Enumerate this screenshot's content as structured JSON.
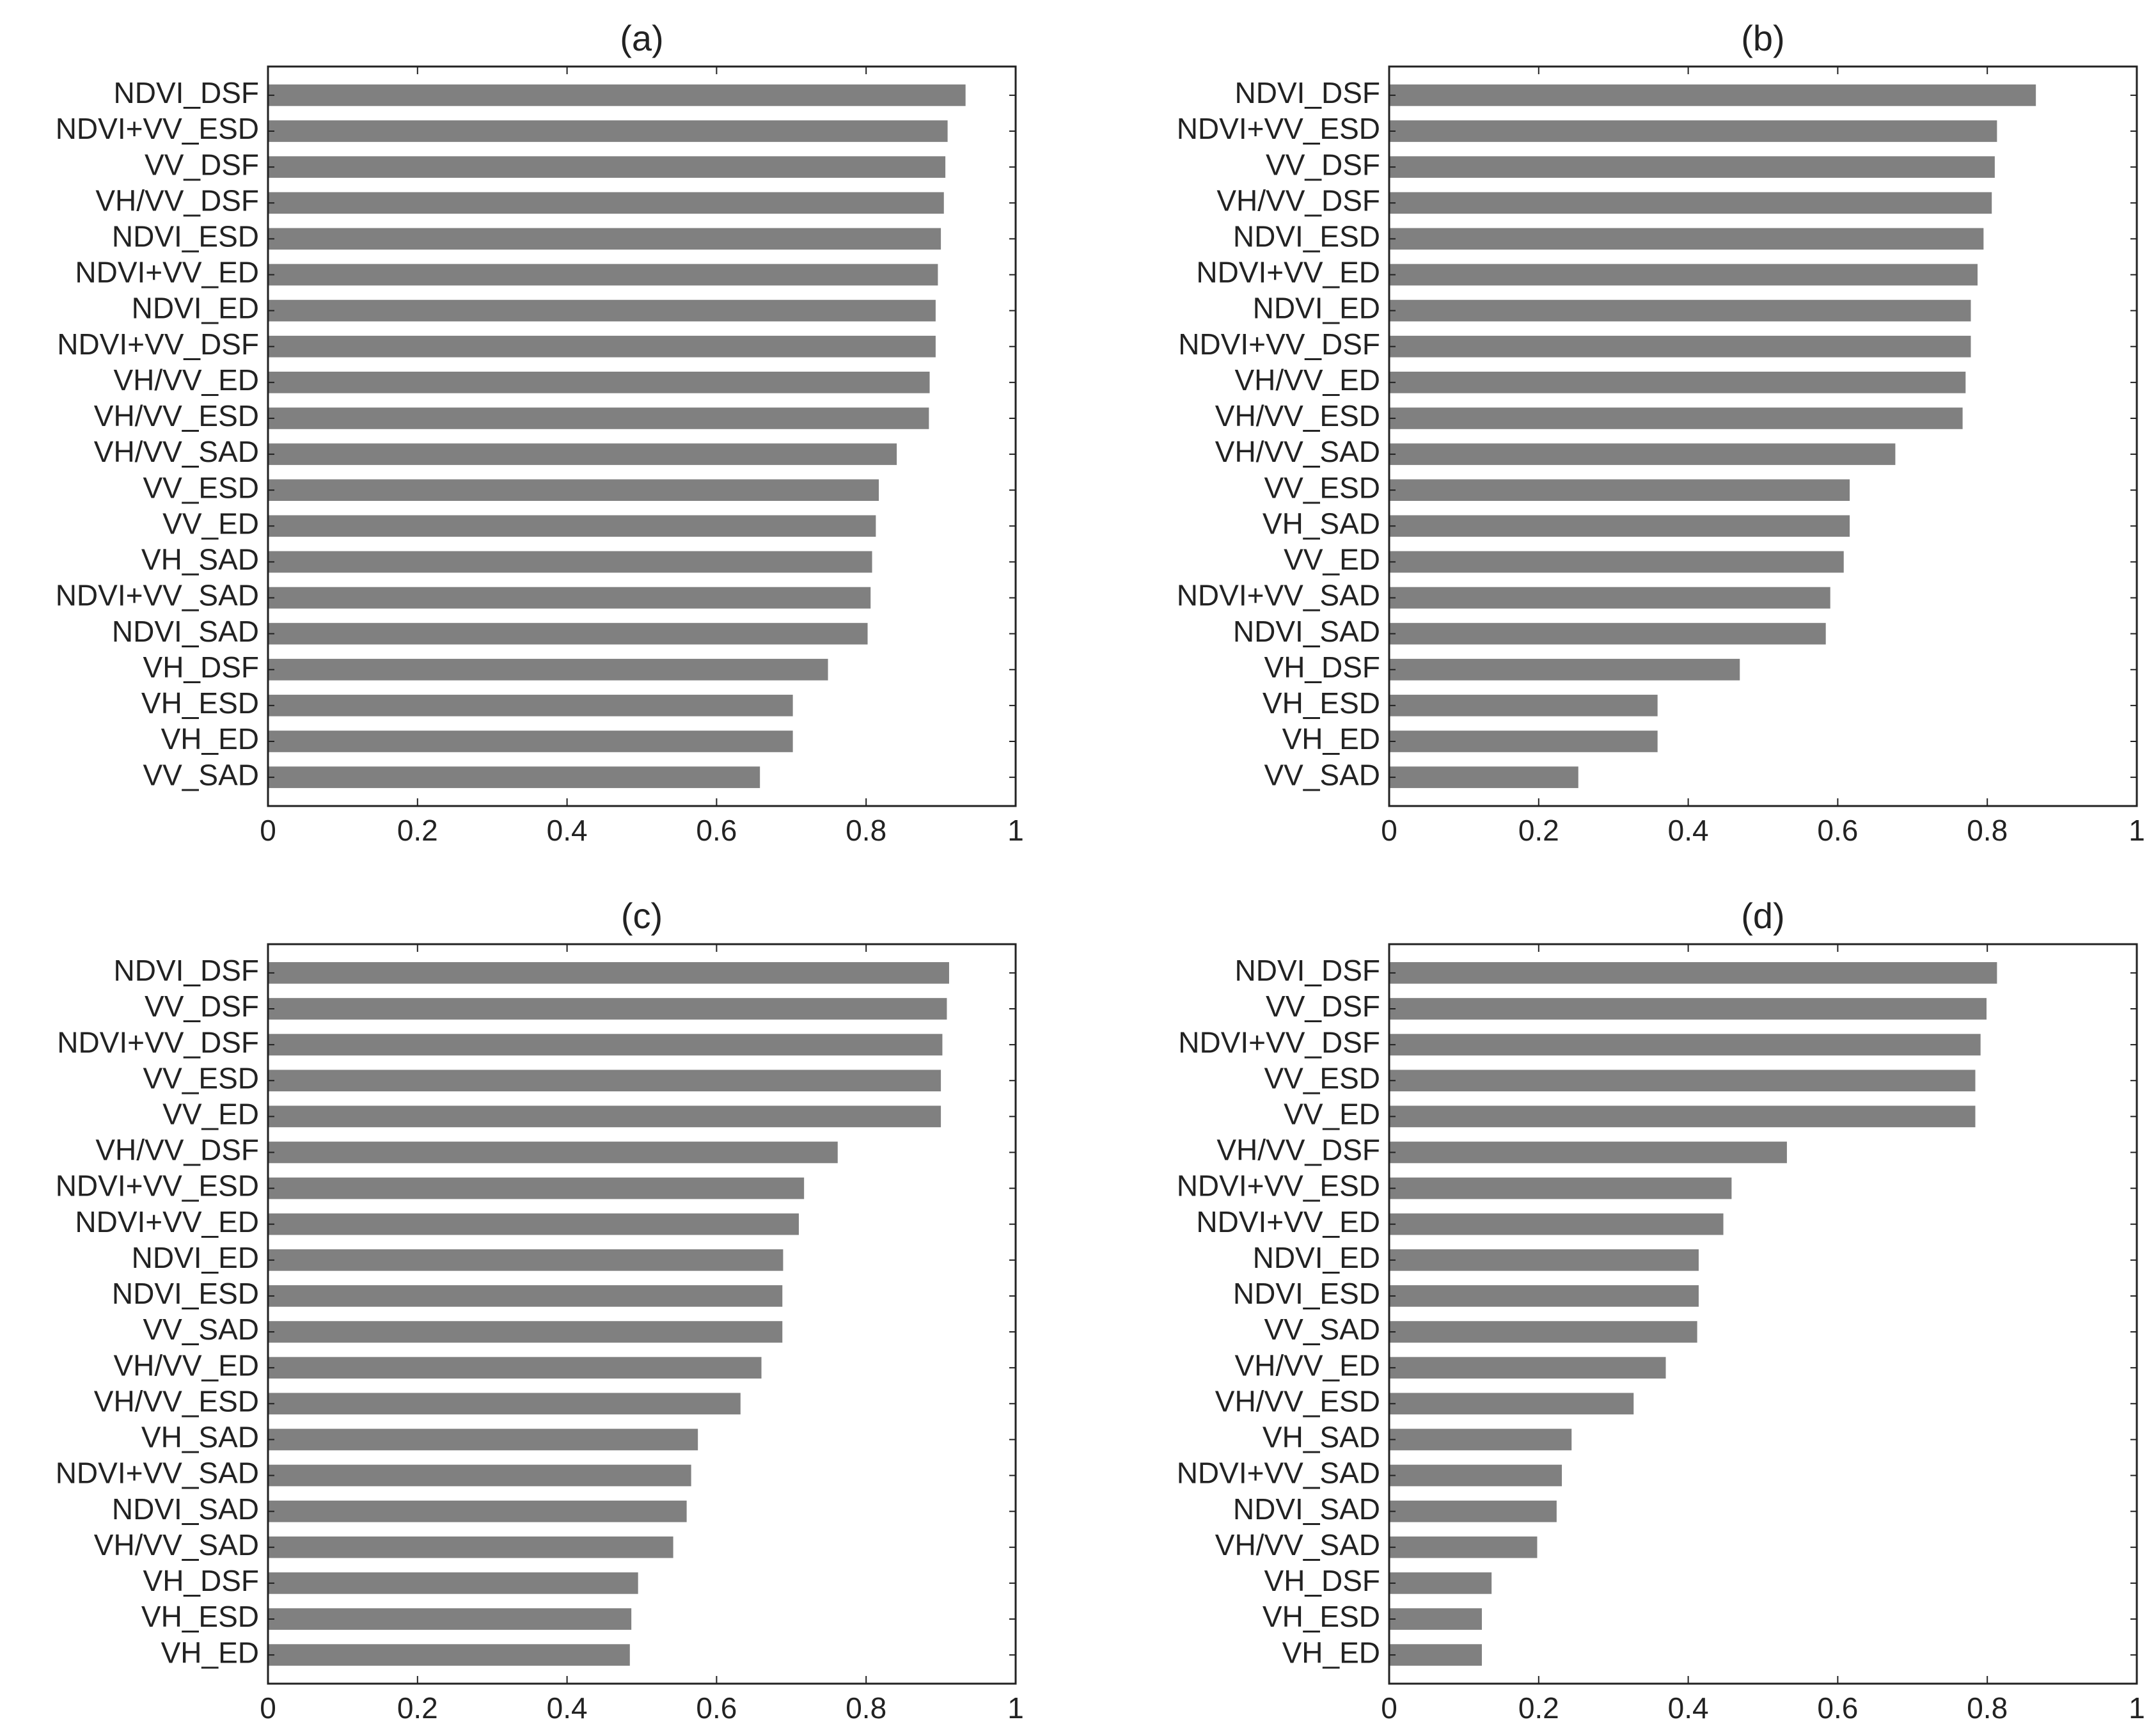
{
  "chart_data": [
    {
      "type": "bar",
      "title": "(a)",
      "orientation": "horizontal",
      "color": "#808080",
      "categories": [
        "NDVI_DSF",
        "NDVI+VV_ESD",
        "VV_DSF",
        "VH/VV_DSF",
        "NDVI_ESD",
        "NDVI+VV_ED",
        "NDVI_ED",
        "NDVI+VV_DSF",
        "VH/VV_ED",
        "VH/VV_ESD",
        "VH/VV_SAD",
        "VV_ESD",
        "VV_ED",
        "VH_SAD",
        "NDVI+VV_SAD",
        "NDVI_SAD",
        "VH_DSF",
        "VH_ESD",
        "VH_ED",
        "VV_SAD"
      ],
      "values": [
        0.933,
        0.909,
        0.906,
        0.904,
        0.9,
        0.896,
        0.893,
        0.893,
        0.885,
        0.884,
        0.841,
        0.817,
        0.813,
        0.808,
        0.806,
        0.802,
        0.749,
        0.702,
        0.702,
        0.658
      ],
      "xlim": [
        0,
        1
      ],
      "xticks": [
        0,
        0.2,
        0.4,
        0.6,
        0.8,
        1
      ]
    },
    {
      "type": "bar",
      "title": "(b)",
      "orientation": "horizontal",
      "color": "#808080",
      "categories": [
        "NDVI_DSF",
        "NDVI+VV_ESD",
        "VV_DSF",
        "VH/VV_DSF",
        "NDVI_ESD",
        "NDVI+VV_ED",
        "NDVI_ED",
        "NDVI+VV_DSF",
        "VH/VV_ED",
        "VH/VV_ESD",
        "VH/VV_SAD",
        "VV_ESD",
        "VH_SAD",
        "VV_ED",
        "NDVI+VV_SAD",
        "NDVI_SAD",
        "VH_DSF",
        "VH_ESD",
        "VH_ED",
        "VV_SAD"
      ],
      "values": [
        0.865,
        0.813,
        0.81,
        0.806,
        0.795,
        0.787,
        0.778,
        0.778,
        0.771,
        0.767,
        0.677,
        0.616,
        0.616,
        0.608,
        0.59,
        0.584,
        0.469,
        0.359,
        0.359,
        0.253
      ],
      "xlim": [
        0,
        1
      ],
      "xticks": [
        0,
        0.2,
        0.4,
        0.6,
        0.8,
        1
      ]
    },
    {
      "type": "bar",
      "title": "(c)",
      "orientation": "horizontal",
      "color": "#808080",
      "categories": [
        "NDVI_DSF",
        "VV_DSF",
        "NDVI+VV_DSF",
        "VV_ESD",
        "VV_ED",
        "VH/VV_DSF",
        "NDVI+VV_ESD",
        "NDVI+VV_ED",
        "NDVI_ED",
        "NDVI_ESD",
        "VV_SAD",
        "VH/VV_ED",
        "VH/VV_ESD",
        "VH_SAD",
        "NDVI+VV_SAD",
        "NDVI_SAD",
        "VH/VV_SAD",
        "VH_DSF",
        "VH_ESD",
        "VH_ED"
      ],
      "values": [
        0.911,
        0.908,
        0.902,
        0.9,
        0.9,
        0.762,
        0.717,
        0.71,
        0.689,
        0.688,
        0.688,
        0.66,
        0.632,
        0.575,
        0.566,
        0.56,
        0.542,
        0.495,
        0.486,
        0.484
      ],
      "xlim": [
        0,
        1
      ],
      "xticks": [
        0,
        0.2,
        0.4,
        0.6,
        0.8,
        1
      ]
    },
    {
      "type": "bar",
      "title": "(d)",
      "orientation": "horizontal",
      "color": "#808080",
      "categories": [
        "NDVI_DSF",
        "VV_DSF",
        "NDVI+VV_DSF",
        "VV_ESD",
        "VV_ED",
        "VH/VV_DSF",
        "NDVI+VV_ESD",
        "NDVI+VV_ED",
        "NDVI_ED",
        "NDVI_ESD",
        "VV_SAD",
        "VH/VV_ED",
        "VH/VV_ESD",
        "VH_SAD",
        "NDVI+VV_SAD",
        "NDVI_SAD",
        "VH/VV_SAD",
        "VH_DSF",
        "VH_ESD",
        "VH_ED"
      ],
      "values": [
        0.813,
        0.799,
        0.791,
        0.784,
        0.784,
        0.532,
        0.458,
        0.447,
        0.414,
        0.414,
        0.412,
        0.37,
        0.327,
        0.244,
        0.231,
        0.224,
        0.198,
        0.137,
        0.124,
        0.124
      ],
      "xlim": [
        0,
        1
      ],
      "xticks": [
        0,
        0.2,
        0.4,
        0.6,
        0.8,
        1
      ]
    }
  ]
}
